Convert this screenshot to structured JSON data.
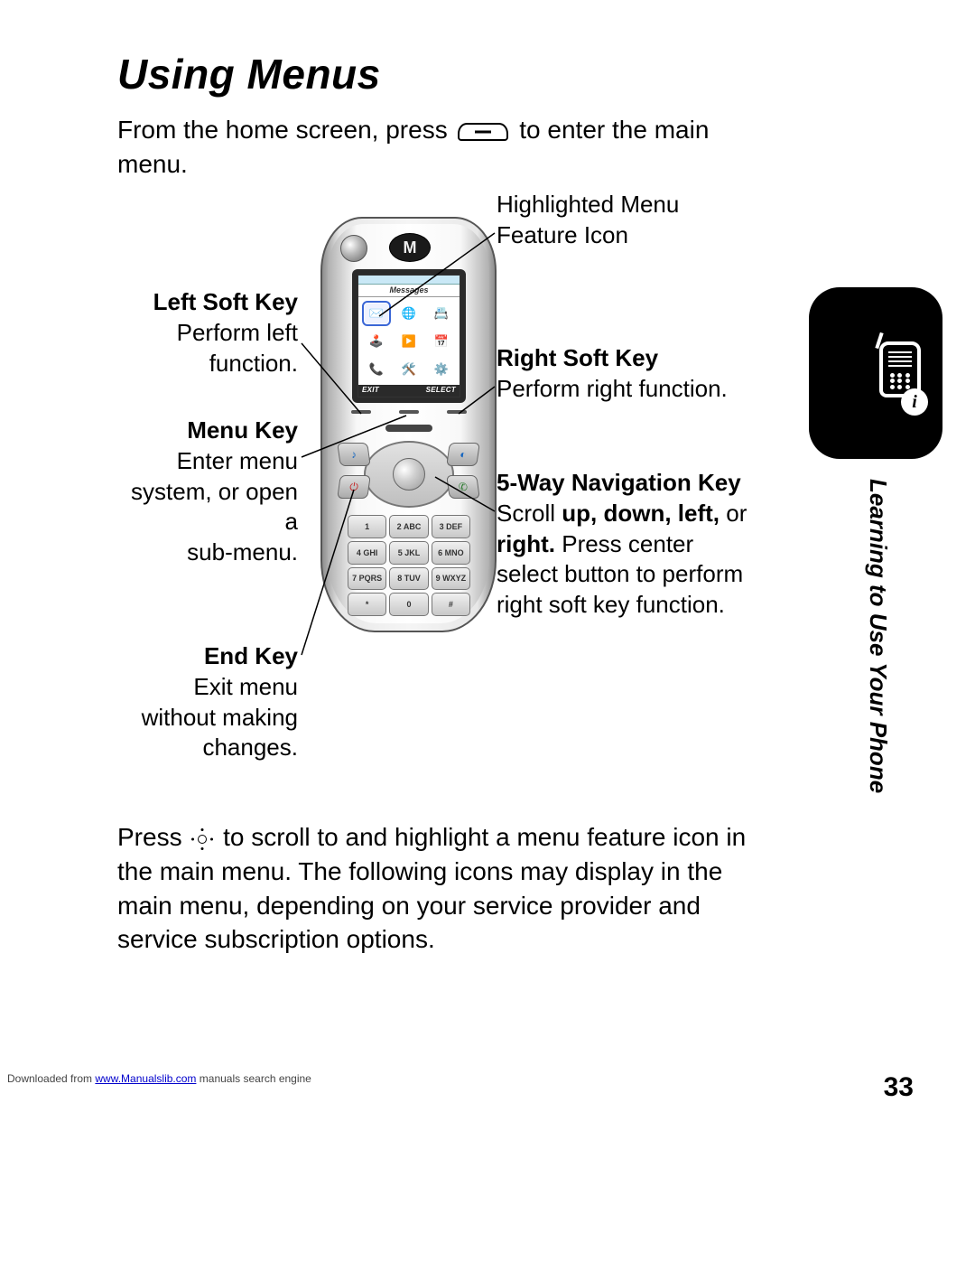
{
  "page": {
    "title": "Using Menus",
    "intro_before": "From the home screen, press ",
    "intro_after": " to enter the main menu.",
    "body_before": "Press ",
    "body_after": " to scroll to and highlight a menu feature icon in the main menu. The following icons may display in the main menu, depending on your service provider and service subscription options.",
    "section": "Learning to Use Your Phone",
    "page_number": "33",
    "footer_prefix": "Downloaded from ",
    "footer_link": "www.Manualslib.com",
    "footer_suffix": " manuals search engine"
  },
  "labels": {
    "highlighted": {
      "title": "",
      "body": "Highlighted Menu Feature Icon"
    },
    "left_soft": {
      "title": "Left Soft Key",
      "body": "Perform left function."
    },
    "right_soft": {
      "title": "Right Soft Key",
      "body": "Perform right function."
    },
    "menu_key": {
      "title": "Menu Key",
      "body": "Enter menu system, or open a\nsub-menu."
    },
    "five_way": {
      "title": "5-Way Navigation Key",
      "body_a": "Scroll ",
      "body_b": "up, down, left,",
      "body_c": " or ",
      "body_d": "right.",
      "body_e": " Press center select button to perform right soft key function."
    },
    "end_key": {
      "title": "End Key",
      "body": "Exit menu without making changes."
    }
  },
  "phone": {
    "screen_title": "Messages",
    "soft_left": "EXIT",
    "soft_right": "SELECT",
    "grid_icons": [
      {
        "glyph": "✉️",
        "selected": true
      },
      {
        "glyph": "🌐",
        "selected": false
      },
      {
        "glyph": "📇",
        "selected": false
      },
      {
        "glyph": "🕹️",
        "selected": false
      },
      {
        "glyph": "▶️",
        "selected": false
      },
      {
        "glyph": "📅",
        "selected": false
      },
      {
        "glyph": "📞",
        "selected": false
      },
      {
        "glyph": "🛠️",
        "selected": false
      },
      {
        "glyph": "⚙️",
        "selected": false
      }
    ],
    "keypad": [
      "1",
      "2 ABC",
      "3 DEF",
      "4 GHI",
      "5 JKL",
      "6 MNO",
      "7 PQRS",
      "8 TUV",
      "9 WXYZ",
      "*",
      "0",
      "#"
    ]
  },
  "style": {
    "title_fontsize": 46,
    "body_fontsize": 28,
    "label_fontsize": 26,
    "text_color": "#000000",
    "bg_color": "#ffffff",
    "tab_bg": "#000000",
    "tab_fg": "#ffffff",
    "link_color": "#0000cc"
  }
}
